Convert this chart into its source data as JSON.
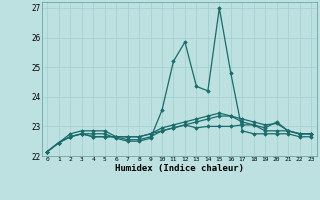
{
  "xlabel": "Humidex (Indice chaleur)",
  "bg_color": "#bde0e0",
  "grid_color": "#9fcfcf",
  "line_color": "#1a6b6b",
  "xlim": [
    -0.5,
    23.5
  ],
  "ylim": [
    22.0,
    27.2
  ],
  "yticks": [
    22,
    23,
    24,
    25,
    26,
    27
  ],
  "xticks": [
    0,
    1,
    2,
    3,
    4,
    5,
    6,
    7,
    8,
    9,
    10,
    11,
    12,
    13,
    14,
    15,
    16,
    17,
    18,
    19,
    20,
    21,
    22,
    23
  ],
  "curves": [
    [
      22.15,
      22.45,
      22.65,
      22.75,
      22.75,
      22.75,
      22.6,
      22.5,
      22.5,
      22.6,
      23.55,
      25.2,
      25.85,
      24.35,
      24.2,
      27.0,
      24.8,
      22.85,
      22.75,
      22.75,
      22.75,
      22.75,
      22.65,
      22.65
    ],
    [
      22.15,
      22.45,
      22.75,
      22.85,
      22.85,
      22.85,
      22.65,
      22.55,
      22.55,
      22.65,
      22.85,
      22.95,
      23.05,
      22.95,
      23.0,
      23.0,
      23.0,
      23.05,
      23.05,
      22.85,
      22.85,
      22.85,
      22.75,
      22.75
    ],
    [
      22.15,
      22.45,
      22.65,
      22.75,
      22.65,
      22.65,
      22.65,
      22.65,
      22.65,
      22.75,
      22.85,
      22.95,
      23.05,
      23.15,
      23.25,
      23.35,
      23.35,
      23.25,
      23.15,
      23.05,
      23.1,
      22.85,
      22.75,
      22.75
    ],
    [
      22.15,
      22.45,
      22.65,
      22.75,
      22.65,
      22.65,
      22.65,
      22.65,
      22.65,
      22.75,
      22.95,
      23.05,
      23.15,
      23.25,
      23.35,
      23.45,
      23.35,
      23.15,
      23.05,
      22.95,
      23.15,
      22.85,
      22.75,
      22.75
    ]
  ]
}
